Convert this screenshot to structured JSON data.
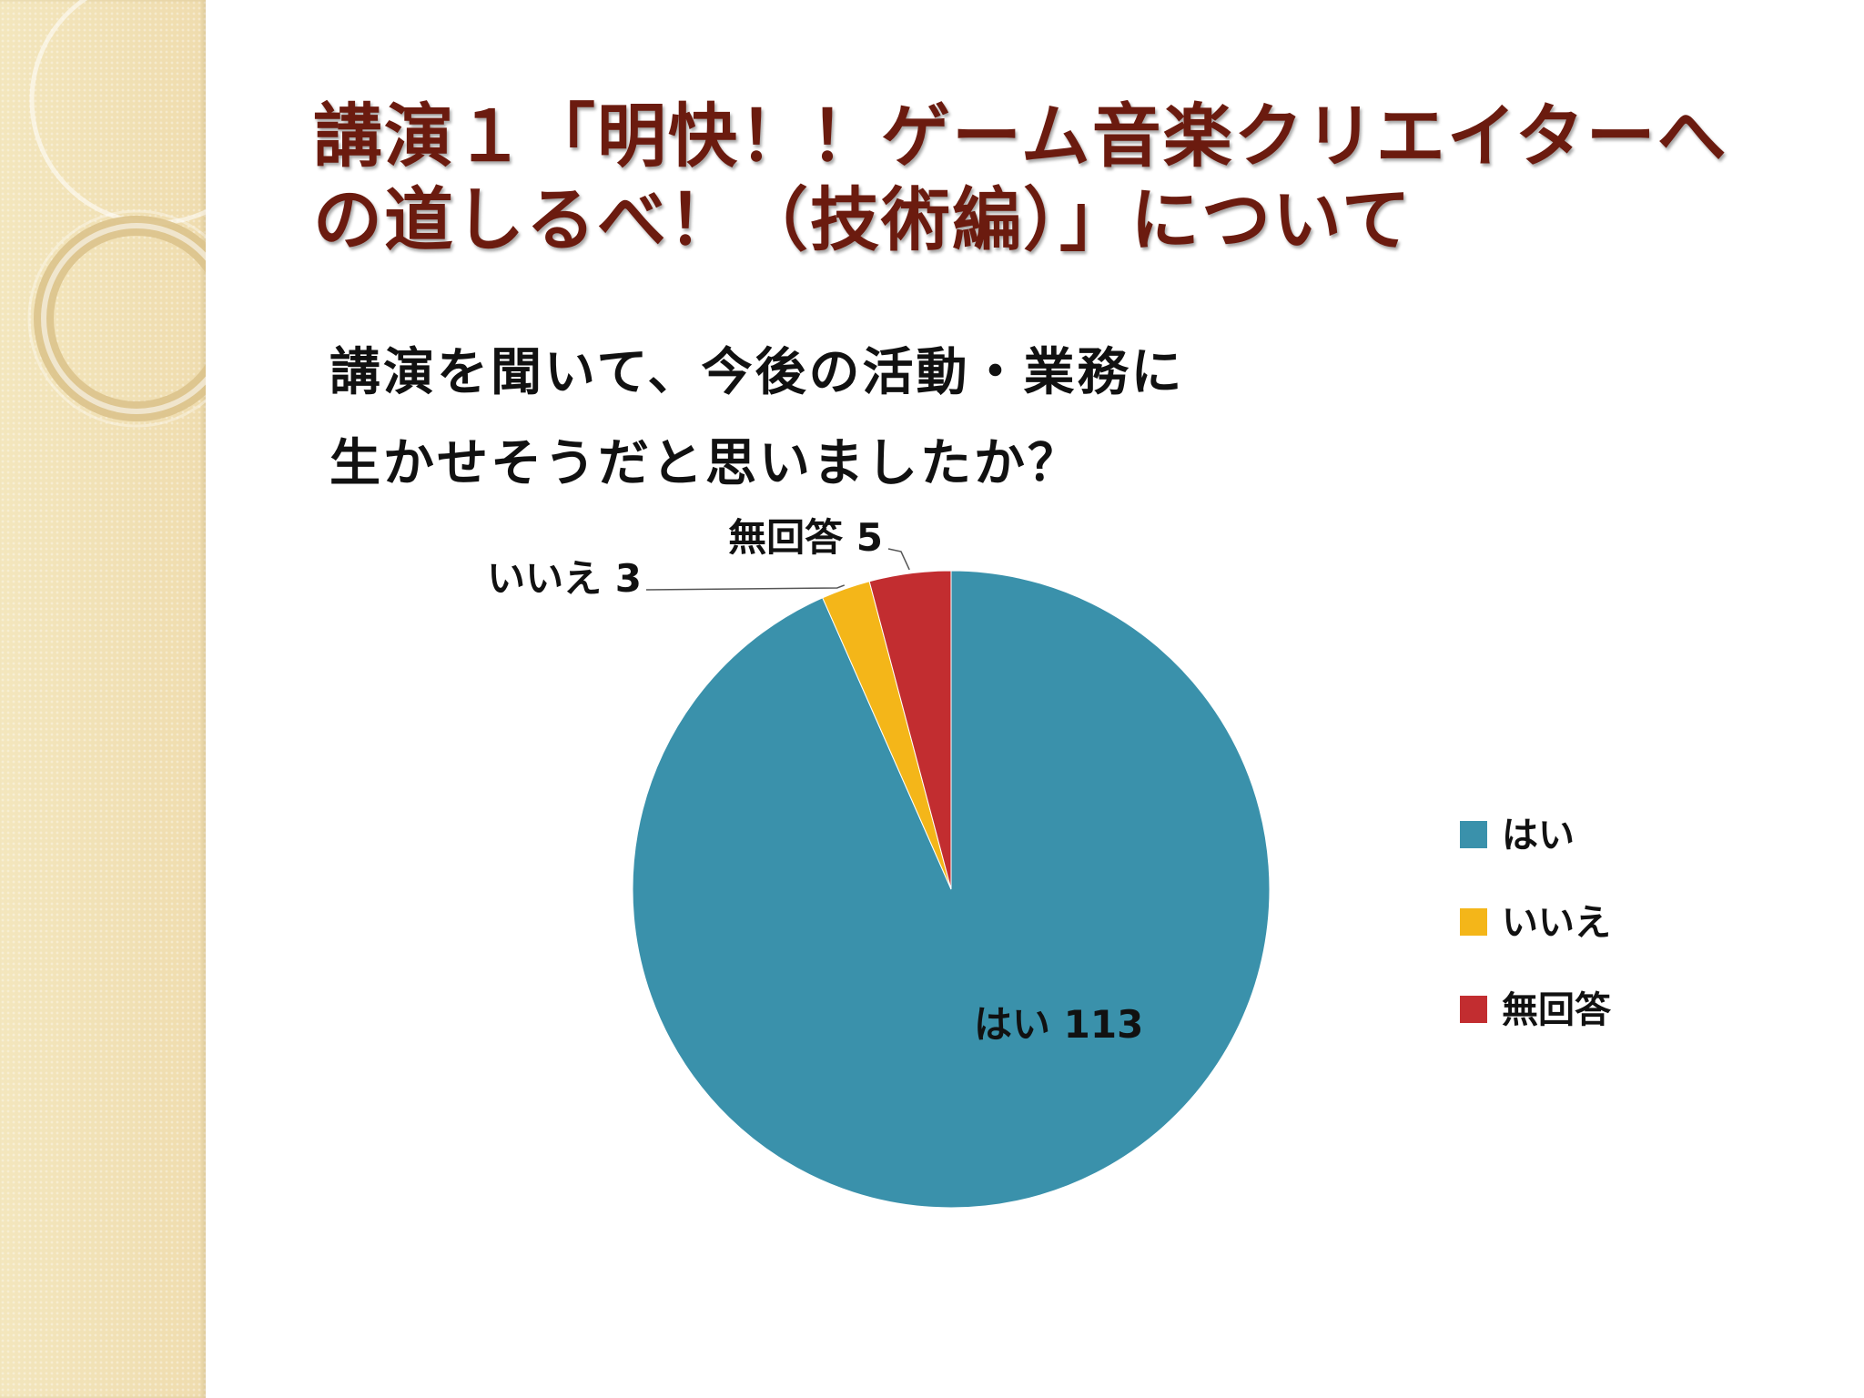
{
  "slide": {
    "title": "講演１「明快！！ゲーム音楽クリエイターへの道しるべ！（技術編）」について",
    "question_lines": [
      "講演を聞いて、今後の活動・業務に",
      "生かせそうだと思いましたか？"
    ],
    "colors": {
      "title": "#6b1b0f",
      "sidebar": "#f1e2b5"
    }
  },
  "chart_data": {
    "type": "pie",
    "categories": [
      "はい",
      "いいえ",
      "無回答"
    ],
    "values": [
      113,
      3,
      5
    ],
    "colors": [
      "#3a91ab",
      "#f4b619",
      "#c22d30"
    ],
    "data_labels": [
      "はい 113",
      "いいえ 3",
      "無回答 5"
    ],
    "legend_position": "right",
    "start_angle": "12 o'clock",
    "direction": "clockwise"
  }
}
